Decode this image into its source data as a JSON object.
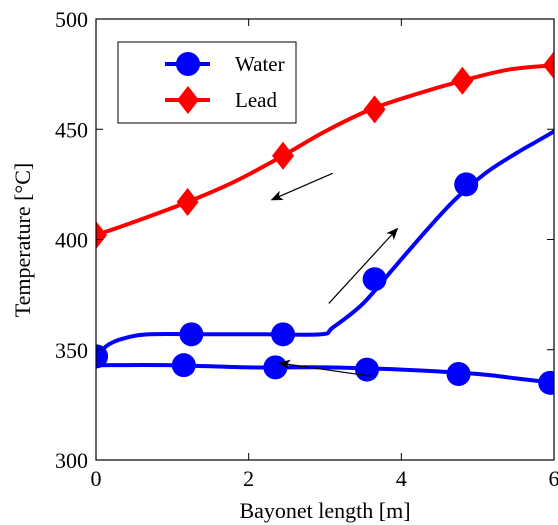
{
  "chart_data": {
    "type": "line",
    "xlabel": "Bayonet length [m]",
    "ylabel": "Temperature [°C]",
    "xlim": [
      0,
      6
    ],
    "ylim": [
      300,
      500
    ],
    "xticks": [
      0,
      2,
      4,
      6
    ],
    "yticks": [
      300,
      350,
      400,
      450,
      500
    ],
    "xtick_labels": [
      "0",
      "2",
      "4",
      "6"
    ],
    "ytick_labels": [
      "300",
      "350",
      "400",
      "450",
      "500"
    ],
    "grid": false,
    "legend_position": "top-left",
    "series": [
      {
        "name": "Lead",
        "color": "#ff0000",
        "marker": "diamond",
        "curve": [
          [
            0,
            402
          ],
          [
            0.5,
            408
          ],
          [
            1.2,
            417
          ],
          [
            1.8,
            426
          ],
          [
            2.4,
            437
          ],
          [
            3.0,
            449
          ],
          [
            3.6,
            459
          ],
          [
            4.2,
            466
          ],
          [
            4.8,
            472
          ],
          [
            5.4,
            477
          ],
          [
            6.0,
            479
          ]
        ],
        "markers": [
          [
            0,
            402
          ],
          [
            1.2,
            417
          ],
          [
            2.45,
            438
          ],
          [
            3.65,
            459
          ],
          [
            4.8,
            472
          ],
          [
            6.0,
            479
          ]
        ]
      },
      {
        "name": "Water",
        "color": "#0000ff",
        "marker": "circle",
        "curve": [
          [
            0,
            347
          ],
          [
            0.15,
            352
          ],
          [
            0.35,
            355
          ],
          [
            0.7,
            357
          ],
          [
            1.5,
            357
          ],
          [
            2.2,
            357
          ],
          [
            2.95,
            357
          ],
          [
            3.1,
            360
          ],
          [
            3.5,
            371
          ],
          [
            3.9,
            387
          ],
          [
            4.3,
            403
          ],
          [
            4.7,
            418
          ],
          [
            5.1,
            430
          ],
          [
            5.5,
            439
          ],
          [
            5.8,
            445
          ],
          [
            6.0,
            449
          ]
        ],
        "markers": [
          [
            0,
            347
          ],
          [
            1.25,
            357
          ],
          [
            2.45,
            357
          ],
          [
            3.65,
            382
          ],
          [
            4.85,
            425
          ]
        ]
      },
      {
        "name": "",
        "color": "#0000ff",
        "marker": "circle",
        "curve": [
          [
            0,
            343
          ],
          [
            1.0,
            343
          ],
          [
            2.0,
            342
          ],
          [
            3.0,
            342
          ],
          [
            4.0,
            341
          ],
          [
            5.0,
            339
          ],
          [
            5.5,
            337
          ],
          [
            6.0,
            335
          ]
        ],
        "markers": [
          [
            0,
            347
          ],
          [
            1.15,
            343
          ],
          [
            2.35,
            342
          ],
          [
            3.55,
            341
          ],
          [
            4.75,
            339
          ],
          [
            5.95,
            335
          ]
        ]
      }
    ],
    "annotations": [
      {
        "type": "arrow",
        "from": [
          3.1,
          430
        ],
        "to": [
          2.3,
          418
        ]
      },
      {
        "type": "arrow",
        "from": [
          3.05,
          371
        ],
        "to": [
          3.95,
          405
        ]
      },
      {
        "type": "arrow",
        "from": [
          3.6,
          338
        ],
        "to": [
          2.4,
          344
        ]
      }
    ]
  }
}
